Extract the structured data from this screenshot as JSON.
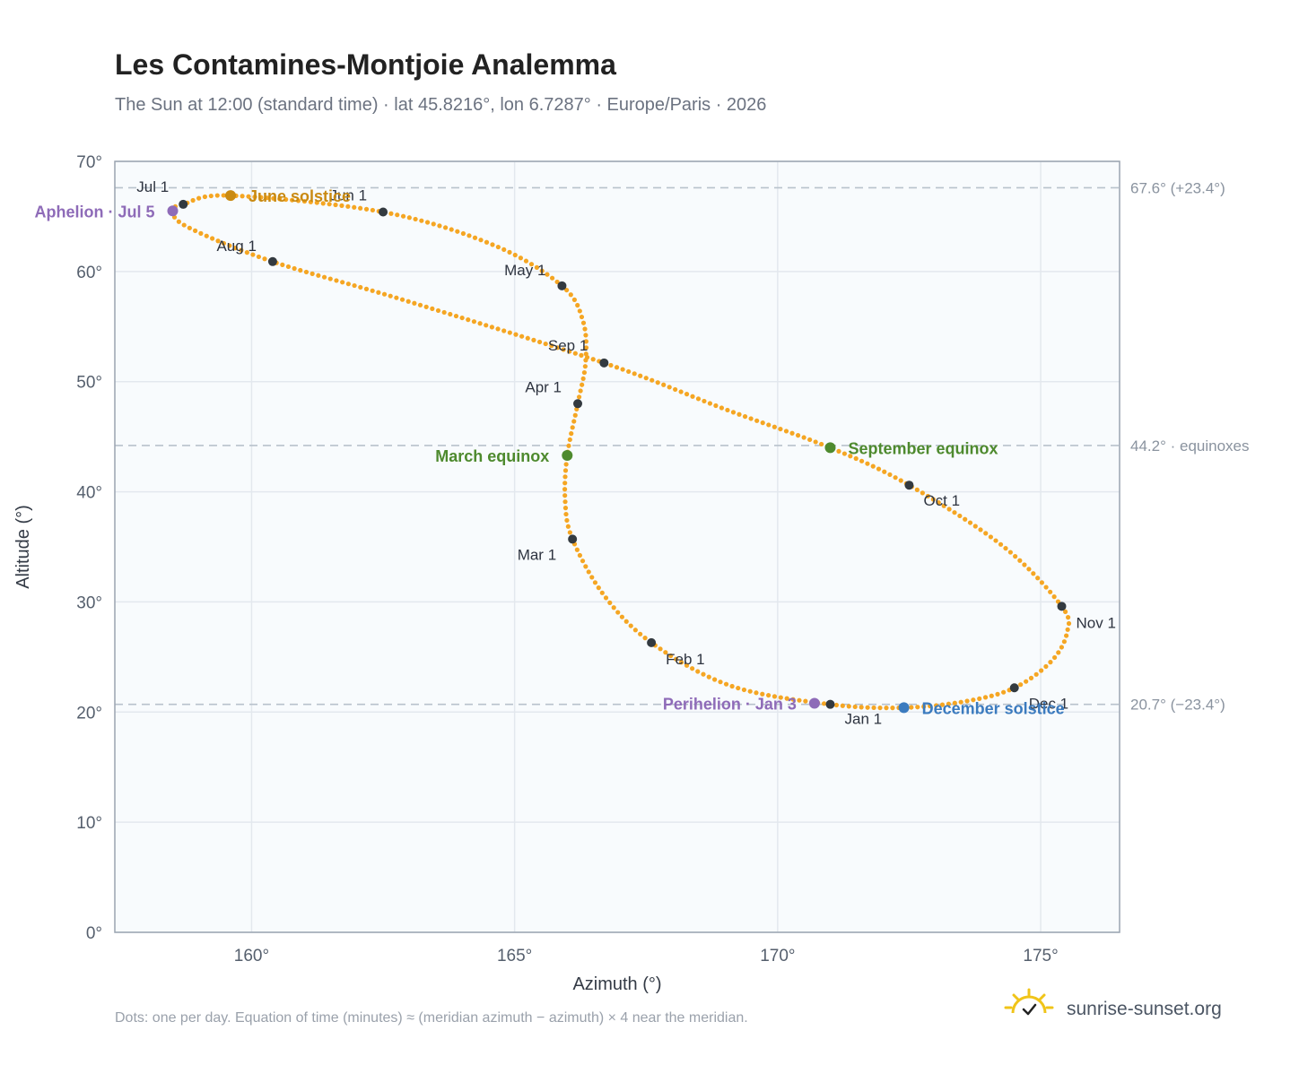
{
  "title": "Les Contamines-Montjoie Analemma",
  "subtitle": "The Sun at 12:00 (standard time) · lat 45.8216°, lon 6.7287° · Europe/Paris · 2026",
  "footnote": "Dots: one per day. Equation of time (minutes) ≈ (meridian azimuth − azimuth) × 4 near the meridian.",
  "brand": {
    "name": "sunrise-sunset.org",
    "icon": "sun-logo-icon",
    "color": "#f0c419"
  },
  "chart_data": {
    "type": "scatter",
    "title": "Les Contamines-Montjoie Analemma",
    "xlabel": "Azimuth (°)",
    "ylabel": "Altitude (°)",
    "xlim": [
      157.4,
      176.5
    ],
    "ylim": [
      0,
      70
    ],
    "x_ticks": [
      160,
      165,
      170,
      175
    ],
    "y_ticks": [
      0,
      10,
      20,
      30,
      40,
      50,
      60,
      70
    ],
    "tick_suffix": "°",
    "grid": true,
    "colors": {
      "path": "#f5a623",
      "month": "#333a40",
      "solstice_june": "#c98a12",
      "equinox": "#4e8a2e",
      "solstice_december": "#3b7bbf",
      "apsis": "#8e6bb8",
      "reference": "#b8c2cc"
    },
    "reference_lines": [
      {
        "altitude": 67.6,
        "label": "67.6° (+23.4°)"
      },
      {
        "altitude": 44.2,
        "label": "44.2° · equinoxes"
      },
      {
        "altitude": 20.7,
        "label": "20.7° (−23.4°)"
      }
    ],
    "path": [
      {
        "date": "Jan 1",
        "az": 171.0,
        "alt": 20.7
      },
      {
        "date": "Jan 16",
        "az": 169.1,
        "alt": 22.4
      },
      {
        "date": "Feb 1",
        "az": 167.6,
        "alt": 26.3
      },
      {
        "date": "Feb 15",
        "az": 166.7,
        "alt": 30.6
      },
      {
        "date": "Mar 1",
        "az": 166.1,
        "alt": 35.7
      },
      {
        "date": "Mar 10",
        "az": 165.96,
        "alt": 39.2
      },
      {
        "date": "Mar 20",
        "az": 166.0,
        "alt": 43.3
      },
      {
        "date": "Apr 1",
        "az": 166.2,
        "alt": 48.0
      },
      {
        "date": "Apr 10",
        "az": 166.35,
        "alt": 51.8
      },
      {
        "date": "Apr 20",
        "az": 166.3,
        "alt": 55.5
      },
      {
        "date": "May 1",
        "az": 165.9,
        "alt": 58.7
      },
      {
        "date": "May 15",
        "az": 164.6,
        "alt": 62.4
      },
      {
        "date": "Jun 1",
        "az": 162.5,
        "alt": 65.4
      },
      {
        "date": "Jun 21",
        "az": 159.6,
        "alt": 66.9
      },
      {
        "date": "Jul 1",
        "az": 158.7,
        "alt": 66.1
      },
      {
        "date": "Jul 5",
        "az": 158.5,
        "alt": 65.5
      },
      {
        "date": "Jul 15",
        "az": 158.8,
        "alt": 64.0
      },
      {
        "date": "Aug 1",
        "az": 160.4,
        "alt": 60.9
      },
      {
        "date": "Aug 15",
        "az": 162.9,
        "alt": 57.4
      },
      {
        "date": "Sep 1",
        "az": 166.7,
        "alt": 51.7
      },
      {
        "date": "Sep 12",
        "az": 169.0,
        "alt": 47.5
      },
      {
        "date": "Sep 22",
        "az": 171.0,
        "alt": 44.0
      },
      {
        "date": "Oct 1",
        "az": 172.5,
        "alt": 40.6
      },
      {
        "date": "Oct 15",
        "az": 174.3,
        "alt": 35.0
      },
      {
        "date": "Nov 1",
        "az": 175.4,
        "alt": 29.6
      },
      {
        "date": "Nov 10",
        "az": 175.5,
        "alt": 27.2
      },
      {
        "date": "Nov 20",
        "az": 175.2,
        "alt": 24.6
      },
      {
        "date": "Dec 1",
        "az": 174.5,
        "alt": 22.2
      },
      {
        "date": "Dec 10",
        "az": 173.6,
        "alt": 21.0
      },
      {
        "date": "Dec 21",
        "az": 172.4,
        "alt": 20.4
      },
      {
        "date": "Jan 1",
        "az": 171.0,
        "alt": 20.7
      }
    ],
    "month_markers": [
      {
        "label": "Jan 1",
        "az": 171.0,
        "alt": 20.7,
        "dx": 16,
        "dy": 22,
        "anchor": "start"
      },
      {
        "label": "Feb 1",
        "az": 167.6,
        "alt": 26.3,
        "dx": 16,
        "dy": 24,
        "anchor": "start"
      },
      {
        "label": "Mar 1",
        "az": 166.1,
        "alt": 35.7,
        "dx": -18,
        "dy": 23,
        "anchor": "end"
      },
      {
        "label": "Apr 1",
        "az": 166.2,
        "alt": 48.0,
        "dx": -18,
        "dy": -13,
        "anchor": "end"
      },
      {
        "label": "May 1",
        "az": 165.9,
        "alt": 58.7,
        "dx": -18,
        "dy": -12,
        "anchor": "end"
      },
      {
        "label": "Jun 1",
        "az": 162.5,
        "alt": 65.4,
        "dx": -18,
        "dy": -13,
        "anchor": "end"
      },
      {
        "label": "Jul 1",
        "az": 158.7,
        "alt": 66.1,
        "dx": -16,
        "dy": -14,
        "anchor": "end"
      },
      {
        "label": "Aug 1",
        "az": 160.4,
        "alt": 60.9,
        "dx": -18,
        "dy": -12,
        "anchor": "end"
      },
      {
        "label": "Sep 1",
        "az": 166.7,
        "alt": 51.7,
        "dx": -18,
        "dy": -14,
        "anchor": "end"
      },
      {
        "label": "Oct 1",
        "az": 172.5,
        "alt": 40.6,
        "dx": 16,
        "dy": 23,
        "anchor": "start"
      },
      {
        "label": "Nov 1",
        "az": 175.4,
        "alt": 29.6,
        "dx": 16,
        "dy": 24,
        "anchor": "start"
      },
      {
        "label": "Dec 1",
        "az": 174.5,
        "alt": 22.2,
        "dx": 16,
        "dy": 23,
        "anchor": "start"
      }
    ],
    "events": [
      {
        "label": "June solstice",
        "az": 159.6,
        "alt": 66.9,
        "color": "#c98a12",
        "side": "right"
      },
      {
        "label": "March equinox",
        "az": 166.0,
        "alt": 43.3,
        "color": "#4e8a2e",
        "side": "left"
      },
      {
        "label": "September equinox",
        "az": 171.0,
        "alt": 44.0,
        "color": "#4e8a2e",
        "side": "right"
      },
      {
        "label": "December solstice",
        "az": 172.4,
        "alt": 20.4,
        "color": "#3b7bbf",
        "side": "right"
      },
      {
        "label": "Aphelion · Jul 5",
        "az": 158.5,
        "alt": 65.5,
        "color": "#8e6bb8",
        "side": "left"
      },
      {
        "label": "Perihelion · Jan 3",
        "az": 170.7,
        "alt": 20.8,
        "color": "#8e6bb8",
        "side": "left"
      }
    ]
  }
}
